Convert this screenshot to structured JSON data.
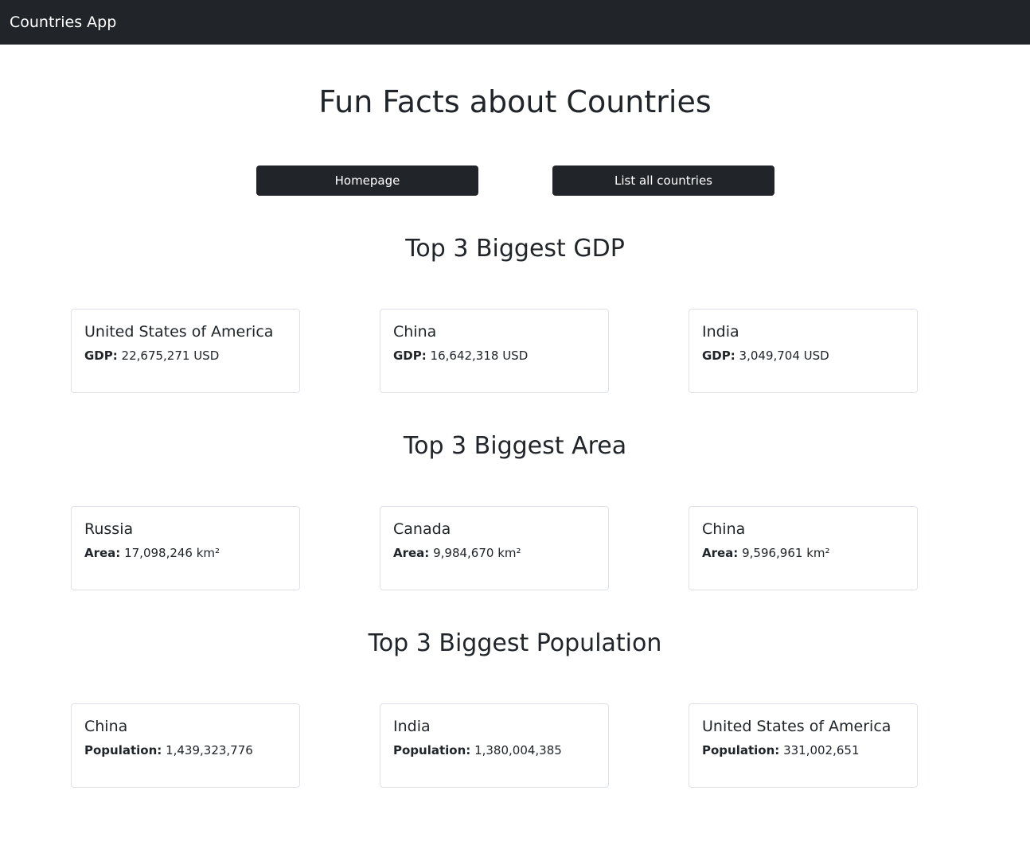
{
  "navbar": {
    "brand": "Countries App"
  },
  "page": {
    "title": "Fun Facts about Countries"
  },
  "buttons": {
    "homepage": "Homepage",
    "list_all": "List all countries"
  },
  "sections": [
    {
      "title": "Top 3 Biggest GDP",
      "label": "GDP:",
      "items": [
        {
          "name": "United States of America",
          "value": "22,675,271 USD"
        },
        {
          "name": "China",
          "value": "16,642,318 USD"
        },
        {
          "name": "India",
          "value": "3,049,704 USD"
        }
      ]
    },
    {
      "title": "Top 3 Biggest Area",
      "label": "Area:",
      "items": [
        {
          "name": "Russia",
          "value": "17,098,246 km²"
        },
        {
          "name": "Canada",
          "value": "9,984,670 km²"
        },
        {
          "name": "China",
          "value": "9,596,961 km²"
        }
      ]
    },
    {
      "title": "Top 3 Biggest Population",
      "label": "Population:",
      "items": [
        {
          "name": "China",
          "value": "1,439,323,776"
        },
        {
          "name": "India",
          "value": "1,380,004,385"
        },
        {
          "name": "United States of America",
          "value": "331,002,651"
        }
      ]
    }
  ]
}
